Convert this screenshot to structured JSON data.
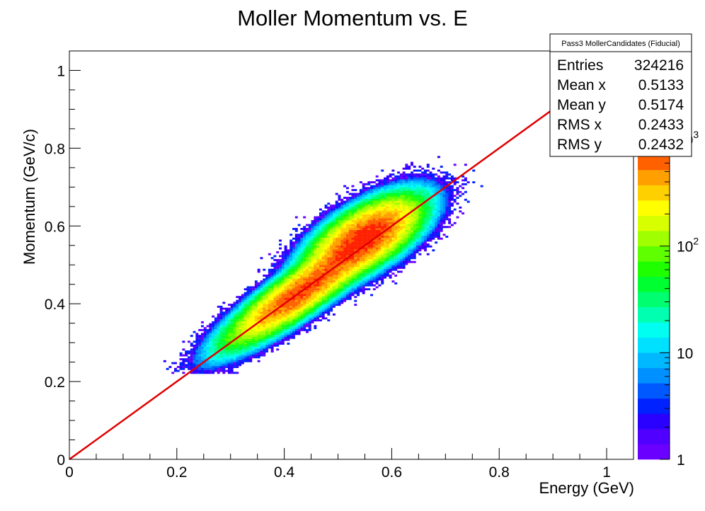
{
  "chart_data": {
    "type": "heatmap",
    "title": "Moller Momentum vs. E",
    "xlabel": "Energy (GeV)",
    "ylabel": "Momentum (GeV/c)",
    "xlim": [
      0,
      1.05
    ],
    "ylim": [
      0,
      1.05
    ],
    "x_ticks": [
      {
        "value": 0,
        "label": "0"
      },
      {
        "value": 0.2,
        "label": "0.2"
      },
      {
        "value": 0.4,
        "label": "0.4"
      },
      {
        "value": 0.6,
        "label": "0.6"
      },
      {
        "value": 0.8,
        "label": "0.8"
      },
      {
        "value": 1,
        "label": "1"
      }
    ],
    "y_ticks": [
      {
        "value": 0,
        "label": "0"
      },
      {
        "value": 0.2,
        "label": "0.2"
      },
      {
        "value": 0.4,
        "label": "0.4"
      },
      {
        "value": 0.6,
        "label": "0.6"
      },
      {
        "value": 0.8,
        "label": "0.8"
      },
      {
        "value": 1,
        "label": "1"
      }
    ],
    "z_scale": "log",
    "zlim": [
      1,
      1000
    ],
    "z_ticks": [
      {
        "value": 1,
        "label": "1"
      },
      {
        "value": 10,
        "label": "10"
      },
      {
        "value": 100,
        "label": "10",
        "exp": "2"
      },
      {
        "value": 1000,
        "label": "10",
        "exp": "3"
      }
    ],
    "palette": [
      "#6a00ff",
      "#5000ff",
      "#2a00ff",
      "#0022ff",
      "#0058ff",
      "#0090ff",
      "#00b8ff",
      "#00e0ff",
      "#00fff0",
      "#00ffb0",
      "#00ff70",
      "#00ff30",
      "#20ff00",
      "#60ff00",
      "#a0ff00",
      "#d8ff00",
      "#ffff00",
      "#ffd000",
      "#ffa000",
      "#ff6000",
      "#ff2000"
    ],
    "stats": {
      "title": "Pass3 MollerCandidates (Fiducial)",
      "rows": [
        {
          "label": "Entries",
          "value": "324216"
        },
        {
          "label": "Mean x",
          "value": "0.5133"
        },
        {
          "label": "Mean y",
          "value": "0.5174"
        },
        {
          "label": "RMS x",
          "value": "0.2433"
        },
        {
          "label": "RMS y",
          "value": "0.2432"
        }
      ]
    },
    "distribution": {
      "components": [
        {
          "cx": 0.43,
          "cy": 0.43,
          "s_along": 0.085,
          "s_across": 0.021,
          "weight": 1.0
        },
        {
          "cx": 0.55,
          "cy": 0.57,
          "s_along": 0.06,
          "s_across": 0.028,
          "weight": 1.25
        }
      ],
      "peak_counts": 900
    },
    "reference_line": {
      "x1": 0,
      "y1": 0,
      "x2": 0.9,
      "y2": 0.9,
      "color": "#e00000"
    }
  }
}
